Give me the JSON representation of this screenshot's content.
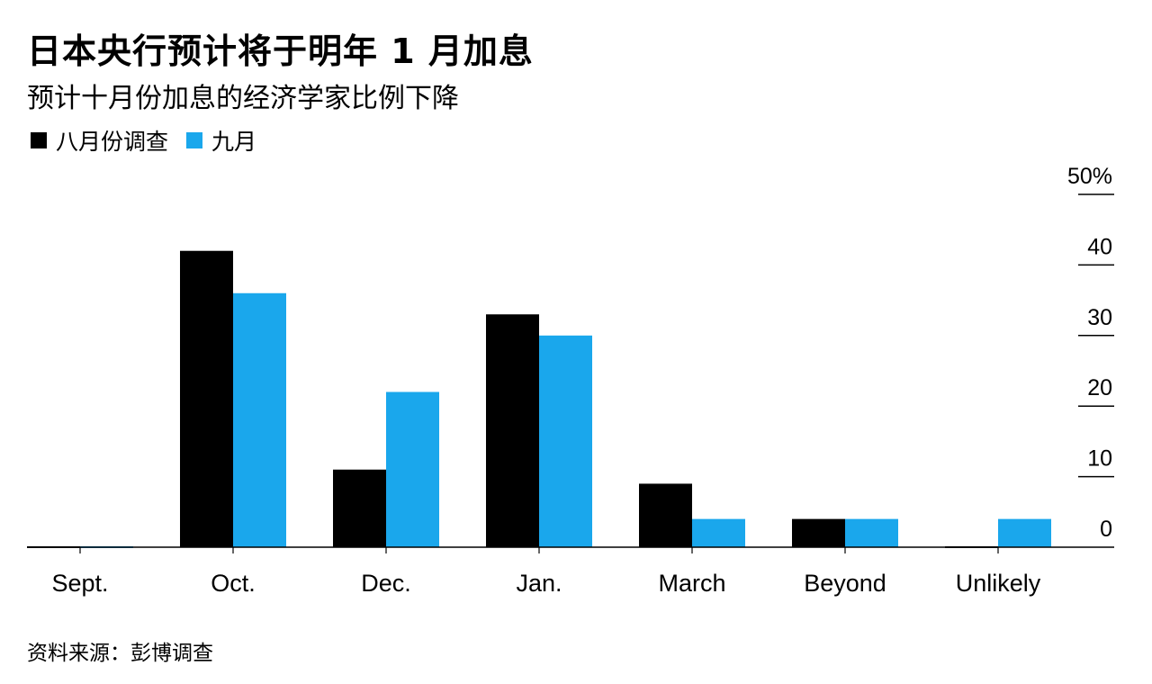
{
  "chart_data": {
    "type": "bar",
    "title": "日本央行预计将于明年 1 月加息",
    "subtitle": "预计十月份加息的经济学家比例下降",
    "categories": [
      "Sept.",
      "Oct.",
      "Dec.",
      "Jan.",
      "March",
      "Beyond",
      "Unlikely"
    ],
    "series": [
      {
        "name": "八月份调查",
        "color": "#000000",
        "values": [
          0,
          42,
          11,
          33,
          9,
          4,
          0
        ]
      },
      {
        "name": "九月",
        "color": "#1AA7EC",
        "values": [
          0,
          36,
          22,
          30,
          4,
          4,
          4
        ]
      }
    ],
    "ylim": [
      0,
      50
    ],
    "yticks": [
      0,
      10,
      20,
      30,
      40,
      50
    ],
    "ytick_labels": [
      "0",
      "10",
      "20",
      "30",
      "40",
      "50%"
    ],
    "xlabel": "",
    "ylabel": "",
    "grid": false,
    "legend_position": "top-left"
  },
  "source": "资料来源：彭博调查"
}
